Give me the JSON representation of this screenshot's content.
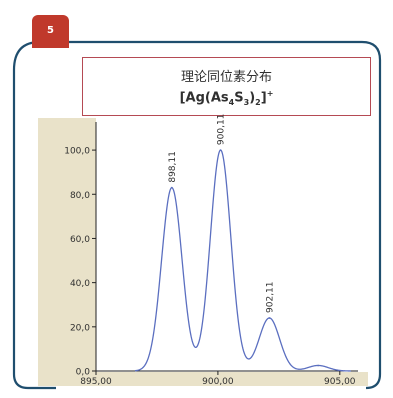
{
  "badge": {
    "number": "5"
  },
  "title": {
    "line1": "理论同位素分布",
    "formula_parts": [
      {
        "t": "[Ag(As",
        "k": "n"
      },
      {
        "t": "4",
        "k": "sub"
      },
      {
        "t": "S",
        "k": "n"
      },
      {
        "t": "3",
        "k": "sub"
      },
      {
        "t": ")",
        "k": "n"
      },
      {
        "t": "2",
        "k": "sub"
      },
      {
        "t": "]",
        "k": "n"
      },
      {
        "t": "+",
        "k": "sup"
      }
    ]
  },
  "colors": {
    "frame": "#1f4e6e",
    "badge": "#c0392b",
    "title_border": "#b54a53",
    "plot_bg": "#e9e2c9",
    "curve": "#5b6fc0",
    "axis": "#222222",
    "text": "#303030"
  },
  "chart_data": {
    "type": "line",
    "title": "",
    "xlabel": "",
    "ylabel": "",
    "xlim": [
      895.0,
      905.5
    ],
    "ylim": [
      0.0,
      110.0
    ],
    "x_ticks": [
      {
        "value": 895.0,
        "label": "895,00"
      },
      {
        "value": 900.0,
        "label": "900,00"
      },
      {
        "value": 905.0,
        "label": "905,00"
      }
    ],
    "y_ticks": [
      {
        "value": 0.0,
        "label": "0,0"
      },
      {
        "value": 20.0,
        "label": "20,0"
      },
      {
        "value": 40.0,
        "label": "40,0"
      },
      {
        "value": 60.0,
        "label": "60,0"
      },
      {
        "value": 80.0,
        "label": "80,0"
      },
      {
        "value": 100.0,
        "label": "100,0"
      }
    ],
    "peaks": [
      {
        "x": 898.11,
        "y": 83.0,
        "label": "898,11"
      },
      {
        "x": 900.11,
        "y": 100.0,
        "label": "900,11"
      },
      {
        "x": 902.11,
        "y": 24.0,
        "label": "902,11"
      },
      {
        "x": 904.11,
        "y": 2.5,
        "label": ""
      }
    ],
    "grid": false,
    "legend": "none"
  }
}
